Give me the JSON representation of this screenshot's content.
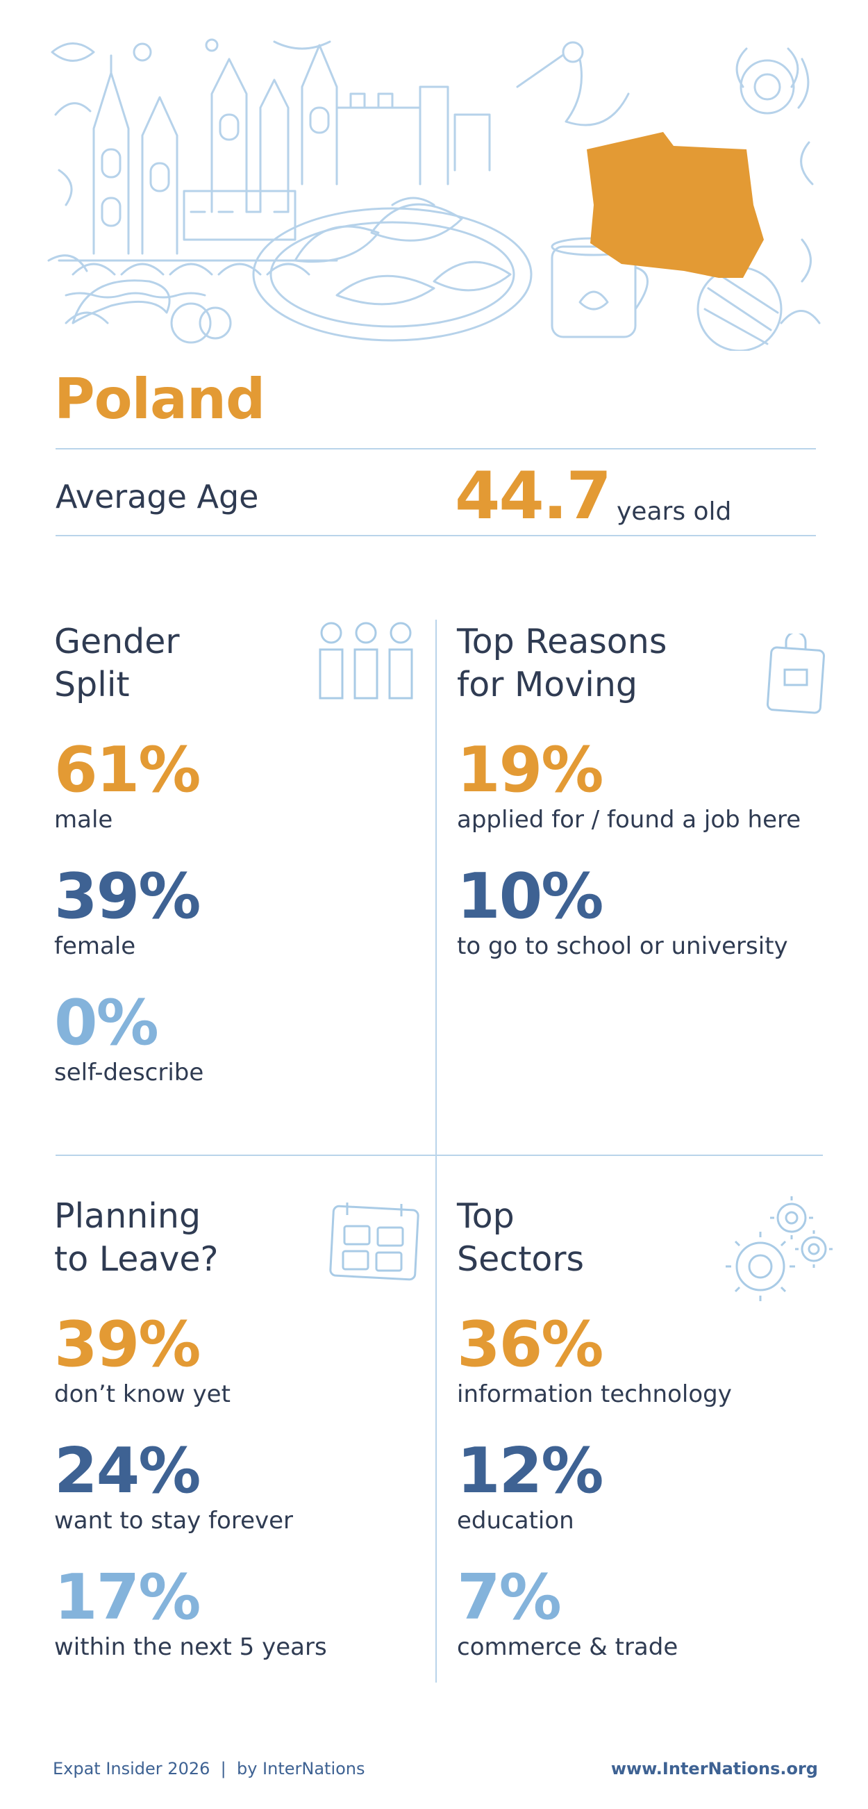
{
  "country": "Poland",
  "average_age": {
    "label": "Average Age",
    "value": "44.7",
    "unit": "years old"
  },
  "gender": {
    "title": "Gender\nSplit",
    "stats": [
      {
        "pct": "61%",
        "label": "male"
      },
      {
        "pct": "39%",
        "label": "female"
      },
      {
        "pct": "0%",
        "label": "self-describe"
      }
    ]
  },
  "reasons": {
    "title": "Top Reasons\nfor Moving",
    "stats": [
      {
        "pct": "19%",
        "label": "applied for / found a job here"
      },
      {
        "pct": "10%",
        "label": "to go to school or university"
      }
    ]
  },
  "leave": {
    "title": "Planning\nto Leave?",
    "stats": [
      {
        "pct": "39%",
        "label": "don’t know yet"
      },
      {
        "pct": "24%",
        "label": "want to stay forever"
      },
      {
        "pct": "17%",
        "label": "within the next 5 years"
      }
    ]
  },
  "sectors": {
    "title": "Top\nSectors",
    "stats": [
      {
        "pct": "36%",
        "label": "information technology"
      },
      {
        "pct": "12%",
        "label": "education"
      },
      {
        "pct": "7%",
        "label": "commerce & trade"
      }
    ]
  },
  "footer": {
    "left": "Expat Insider 2026  |  by InterNations",
    "right": "www.InterNations.org"
  },
  "colors": {
    "orange": "#e39a34",
    "dark_blue": "#3e6293",
    "light_blue": "#84b3db",
    "line": "#b9d4ea"
  },
  "icons": {
    "gender": "people-icon",
    "reasons": "shopping-bag-icon",
    "leave": "calendar-icon",
    "sectors": "gears-icon"
  }
}
